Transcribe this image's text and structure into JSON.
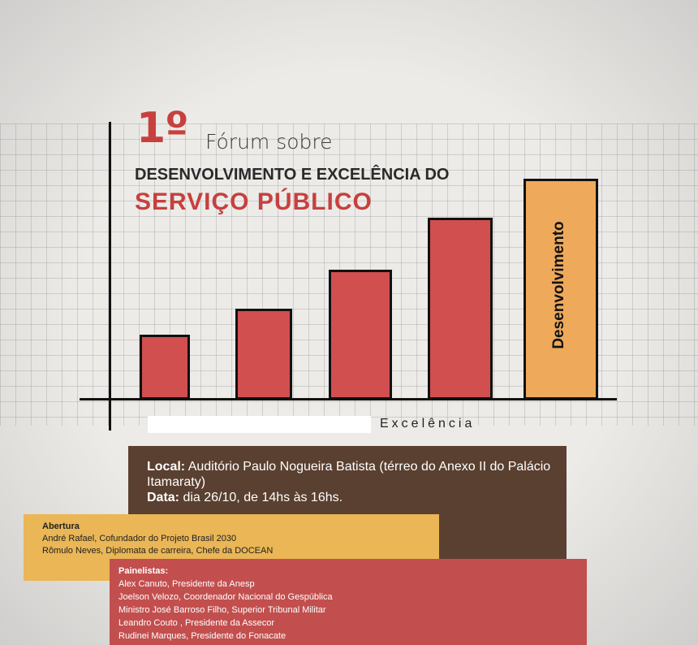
{
  "title": {
    "number": "1º",
    "line1": "Fórum sobre",
    "line2": "DESENVOLVIMENTO E EXCELÊNCIA DO",
    "line3": "SERVIÇO PÚBLICO"
  },
  "chart_data": {
    "type": "bar",
    "values": [
      1,
      1.4,
      2.0,
      2.8,
      3.4
    ],
    "highlight_label": "Desenvolvimento",
    "xlabel": "Excelência",
    "colors": {
      "bar": "#d24f4f",
      "highlight": "#eea95a",
      "outline": "#111111"
    }
  },
  "info": {
    "local_label": "Local:",
    "local_value": "Auditório Paulo Nogueira Batista (térreo do Anexo II do Palácio Itamaraty)",
    "date_label": "Data:",
    "date_value": "dia 26/10, de 14hs às 16hs."
  },
  "opening": {
    "heading": "Abertura",
    "items": [
      "André Rafael, Cofundador do Projeto Brasil 2030",
      "Rômulo Neves, Diplomata de carreira, Chefe da DOCEAN"
    ]
  },
  "panel": {
    "heading": "Painelistas:",
    "items": [
      "Alex Canuto, Presidente da Anesp",
      "Joelson Velozo, Coordenador Nacional do Gespública",
      "Ministro José Barroso Filho, Superior Tribunal Militar",
      "Leandro Couto , Presidente da Assecor",
      "Rudinei Marques, Presidente do Fonacate"
    ]
  }
}
